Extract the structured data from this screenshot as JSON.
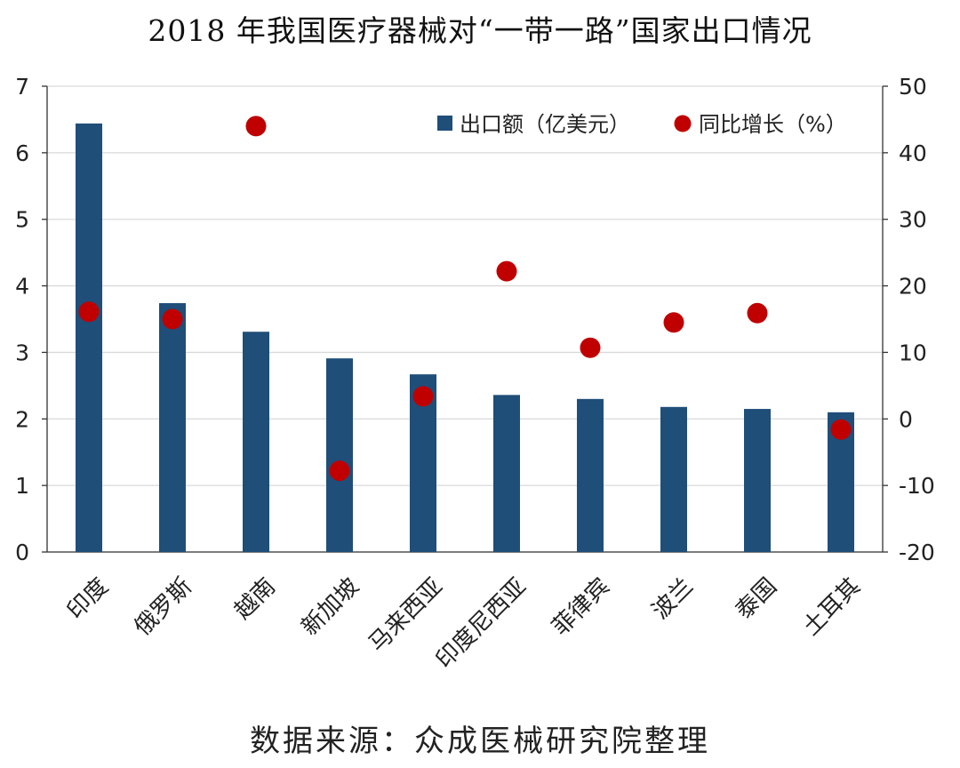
{
  "chart_data": {
    "type": "bar",
    "title": "2018 年我国医疗器械对“一带一路”国家出口情况",
    "categories": [
      "印度",
      "俄罗斯",
      "越南",
      "新加坡",
      "马来西亚",
      "印度尼西亚",
      "菲律宾",
      "波兰",
      "泰国",
      "土耳其"
    ],
    "series": [
      {
        "name": "出口额（亿美元）",
        "type": "bar",
        "axis": "left",
        "color": "#1f4e79",
        "values": [
          6.44,
          3.74,
          3.31,
          2.91,
          2.67,
          2.36,
          2.3,
          2.18,
          2.15,
          2.1
        ]
      },
      {
        "name": "同比增长（%）",
        "type": "scatter",
        "axis": "right",
        "color": "#c00000",
        "values": [
          16.1,
          15.0,
          44.0,
          -7.8,
          3.4,
          22.2,
          10.7,
          14.5,
          15.9,
          -1.6
        ]
      }
    ],
    "y_left": {
      "range": [
        0,
        7
      ],
      "ticks": [
        "0",
        "1",
        "2",
        "3",
        "4",
        "5",
        "6",
        "7"
      ]
    },
    "y_right": {
      "range": [
        -20,
        50
      ],
      "ticks": [
        "-20",
        "-10",
        "0",
        "10",
        "20",
        "30",
        "40",
        "50"
      ]
    },
    "grid": true,
    "legend": "top-right"
  },
  "source": "数据来源：众成医械研究院整理"
}
